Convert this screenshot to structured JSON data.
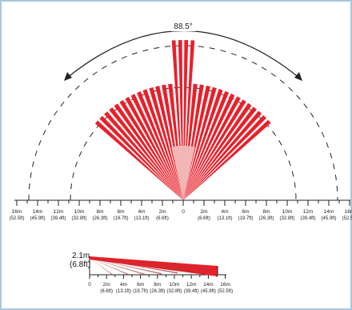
{
  "coverage_angle": "88.5°",
  "height_label_m": "2.1m",
  "height_label_ft": "(6.8ft)",
  "top_scale": {
    "labels_m": [
      "16m",
      "14m",
      "12m",
      "10m",
      "8m",
      "6m",
      "4m",
      "2m",
      "0",
      "2m",
      "4m",
      "6m",
      "8m",
      "10m",
      "12m",
      "14m",
      "16m"
    ],
    "labels_ft": [
      "(52.5ft)",
      "(45.9ft)",
      "(39.4ft)",
      "(32.8ft)",
      "(26.3ft)",
      "(19.7ft)",
      "(13.1ft)",
      "(6.6ft)",
      "",
      "(6.6ft)",
      "(13.1ft)",
      "(19.7ft)",
      "(26.3ft)",
      "(32.8ft)",
      "(39.4ft)",
      "(45.9ft)",
      "(52.5ft)"
    ]
  },
  "side_scale": {
    "labels_m": [
      "0",
      "2m",
      "4m",
      "6m",
      "8m",
      "10m",
      "12m",
      "14m",
      "16m"
    ],
    "labels_ft": [
      "",
      "(6.6ft)",
      "(13.1ft)",
      "(19.7ft)",
      "(26.3ft)",
      "(32.8ft)",
      "(39.4ft)",
      "(45.9ft)",
      "(52.5ft)"
    ]
  },
  "colors": {
    "beam": "#e8202a",
    "beam_side": "#a83a3a",
    "arc": "#222222",
    "border": "#a9c7de"
  }
}
